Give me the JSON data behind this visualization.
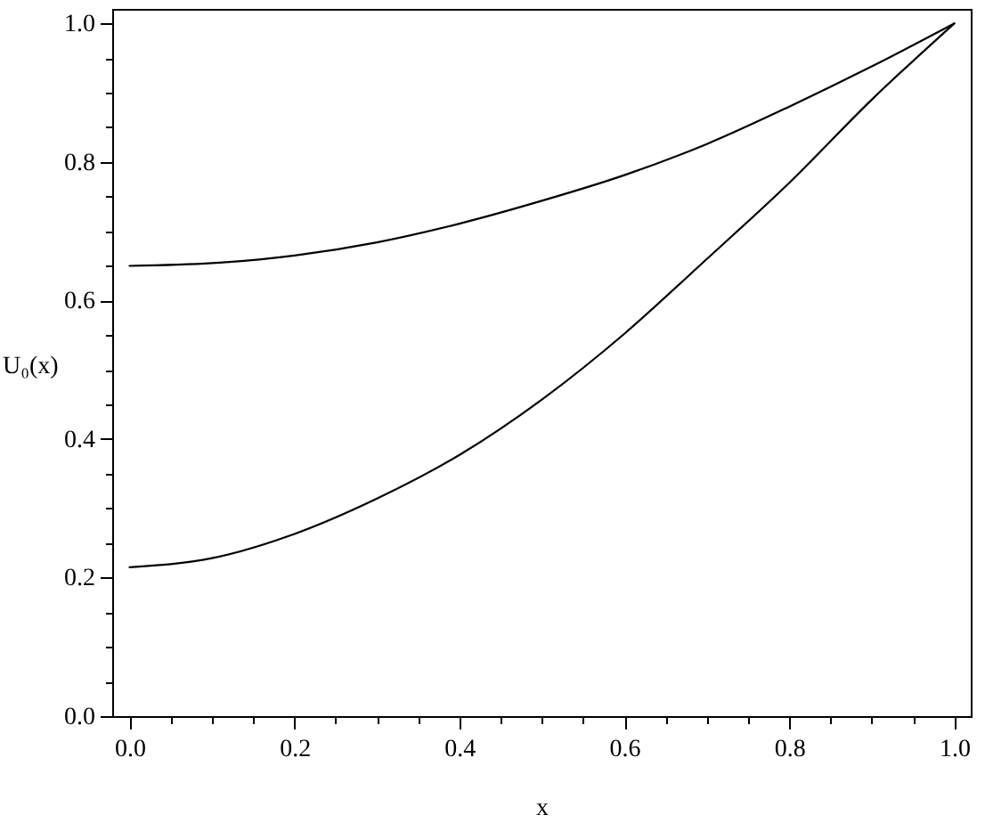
{
  "chart_data": {
    "type": "line",
    "xlabel": "x",
    "ylabel": "U₀(x)",
    "x": [
      0,
      0.1,
      0.2,
      0.3,
      0.4,
      0.5,
      0.6,
      0.7,
      0.8,
      0.9,
      1.0
    ],
    "series": [
      {
        "color": "#000000",
        "values": [
          0.65,
          0.654,
          0.665,
          0.684,
          0.711,
          0.744,
          0.781,
          0.826,
          0.88,
          0.938,
          1.0
        ]
      },
      {
        "color": "#000000",
        "values": [
          0.215,
          0.228,
          0.263,
          0.314,
          0.377,
          0.457,
          0.552,
          0.66,
          0.77,
          0.89,
          1.0
        ]
      }
    ],
    "xlim": [
      -0.021,
      1.02
    ],
    "ylim": [
      0,
      1.021
    ],
    "xticks": [
      {
        "value": 0,
        "label": "0.0"
      },
      {
        "value": 0.05,
        "label": null
      },
      {
        "value": 0.1,
        "label": null
      },
      {
        "value": 0.15,
        "label": null
      },
      0.2,
      {
        "value": 0.25,
        "label": null
      },
      {
        "value": 0.3,
        "label": null
      },
      {
        "value": 0.35,
        "label": null
      },
      0.4,
      {
        "value": 0.45,
        "label": null
      },
      {
        "value": 0.5,
        "label": null
      },
      {
        "value": 0.55,
        "label": null
      },
      0.6,
      {
        "value": 0.65,
        "label": null
      },
      {
        "value": 0.7,
        "label": null
      },
      {
        "value": 0.75,
        "label": null
      },
      0.8,
      {
        "value": 0.85,
        "label": null
      },
      {
        "value": 0.9,
        "label": null
      },
      {
        "value": 0.95,
        "label": null
      },
      {
        "value": 1,
        "label": "1.0"
      }
    ],
    "yticks": [
      {
        "value": 0,
        "label": "0.0"
      },
      {
        "value": 0.05,
        "label": null
      },
      {
        "value": 0.1,
        "label": null
      },
      {
        "value": 0.15,
        "label": null
      },
      0.2,
      {
        "value": 0.25,
        "label": null
      },
      {
        "value": 0.3,
        "label": null
      },
      {
        "value": 0.35,
        "label": null
      },
      0.4,
      {
        "value": 0.45,
        "label": null
      },
      {
        "value": 0.5,
        "label": null
      },
      {
        "value": 0.55,
        "label": null
      },
      0.6,
      {
        "value": 0.65,
        "label": null
      },
      {
        "value": 0.7,
        "label": null
      },
      {
        "value": 0.75,
        "label": null
      },
      0.8,
      {
        "value": 0.85,
        "label": null
      },
      {
        "value": 0.9,
        "label": null
      },
      {
        "value": 0.95,
        "label": null
      },
      {
        "value": 1,
        "label": "1.0"
      }
    ],
    "line_style": "solid"
  }
}
